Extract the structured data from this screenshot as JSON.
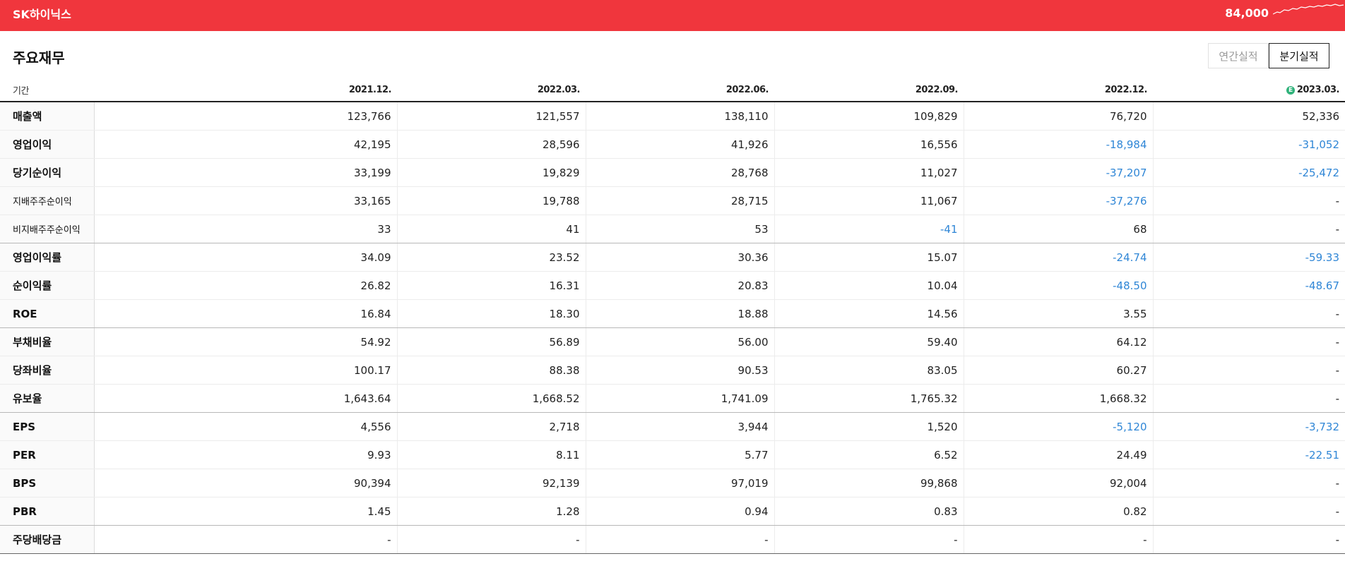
{
  "header": {
    "company": "SK하이닉스",
    "price": "84,000",
    "accent_color": "#f0363d"
  },
  "section": {
    "title": "주요재무",
    "annual_label": "연간실적",
    "quarterly_label": "분기실적"
  },
  "table": {
    "period_label": "기간",
    "estimate_badge": "E",
    "columns": [
      "2021.12.",
      "2022.03.",
      "2022.06.",
      "2022.09.",
      "2022.12.",
      "2023.03."
    ],
    "rows": [
      {
        "label": "매출액",
        "values": [
          "123,766",
          "121,557",
          "138,110",
          "109,829",
          "76,720",
          "52,336"
        ]
      },
      {
        "label": "영업이익",
        "values": [
          "42,195",
          "28,596",
          "41,926",
          "16,556",
          "-18,984",
          "-31,052"
        ]
      },
      {
        "label": "당기순이익",
        "values": [
          "33,199",
          "19,829",
          "28,768",
          "11,027",
          "-37,207",
          "-25,472"
        ]
      },
      {
        "label": "지배주주순이익",
        "values": [
          "33,165",
          "19,788",
          "28,715",
          "11,067",
          "-37,276",
          "-"
        ]
      },
      {
        "label": "비지배주주순이익",
        "values": [
          "33",
          "41",
          "53",
          "-41",
          "68",
          "-"
        ]
      },
      {
        "label": "영업이익률",
        "values": [
          "34.09",
          "23.52",
          "30.36",
          "15.07",
          "-24.74",
          "-59.33"
        ]
      },
      {
        "label": "순이익률",
        "values": [
          "26.82",
          "16.31",
          "20.83",
          "10.04",
          "-48.50",
          "-48.67"
        ]
      },
      {
        "label": "ROE",
        "values": [
          "16.84",
          "18.30",
          "18.88",
          "14.56",
          "3.55",
          "-"
        ]
      },
      {
        "label": "부채비율",
        "values": [
          "54.92",
          "56.89",
          "56.00",
          "59.40",
          "64.12",
          "-"
        ]
      },
      {
        "label": "당좌비율",
        "values": [
          "100.17",
          "88.38",
          "90.53",
          "83.05",
          "60.27",
          "-"
        ]
      },
      {
        "label": "유보율",
        "values": [
          "1,643.64",
          "1,668.52",
          "1,741.09",
          "1,765.32",
          "1,668.32",
          "-"
        ]
      },
      {
        "label": "EPS",
        "values": [
          "4,556",
          "2,718",
          "3,944",
          "1,520",
          "-5,120",
          "-3,732"
        ]
      },
      {
        "label": "PER",
        "values": [
          "9.93",
          "8.11",
          "5.77",
          "6.52",
          "24.49",
          "-22.51"
        ]
      },
      {
        "label": "BPS",
        "values": [
          "90,394",
          "92,139",
          "97,019",
          "99,868",
          "92,004",
          "-"
        ]
      },
      {
        "label": "PBR",
        "values": [
          "1.45",
          "1.28",
          "0.94",
          "0.83",
          "0.82",
          "-"
        ]
      },
      {
        "label": "주당배당금",
        "values": [
          "-",
          "-",
          "-",
          "-",
          "-",
          "-"
        ]
      }
    ]
  }
}
